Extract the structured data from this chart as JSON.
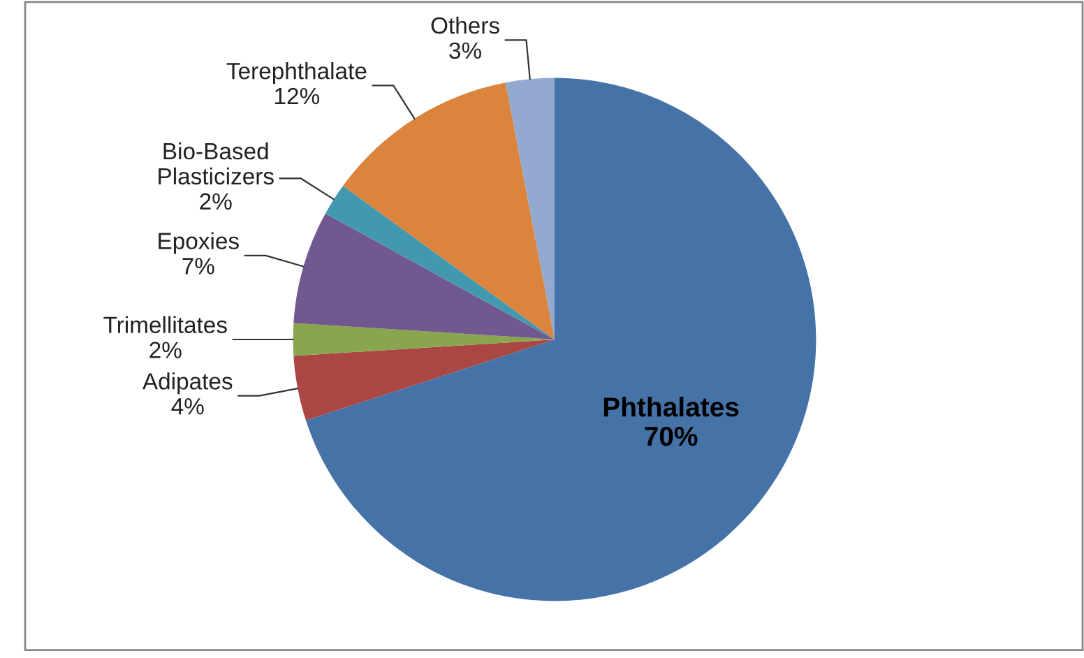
{
  "chart_data": {
    "type": "pie",
    "categories": [
      "Phthalates",
      "Adipates",
      "Trimellitates",
      "Epoxies",
      "Bio-Based Plasticizers",
      "Terephthalate",
      "Others"
    ],
    "values": [
      70,
      4,
      2,
      7,
      2,
      12,
      3
    ],
    "value_labels": [
      "70%",
      "4%",
      "2%",
      "7%",
      "2%",
      "12%",
      "3%"
    ],
    "colors": [
      "#4572a7",
      "#aa4643",
      "#89a54e",
      "#71588f",
      "#4198af",
      "#db843d",
      "#93a9cf"
    ],
    "legend": false
  }
}
